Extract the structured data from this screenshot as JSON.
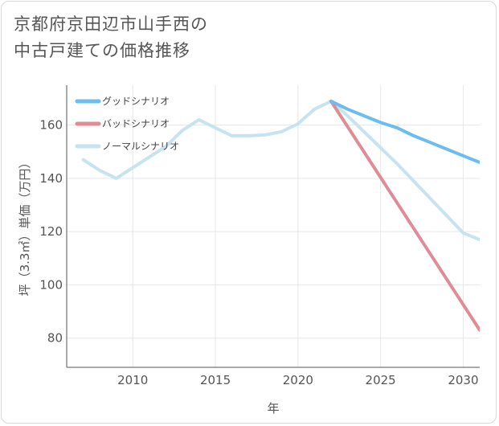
{
  "title": {
    "line1": "京都府京田辺市山手西の",
    "line2": "中古戸建ての価格推移"
  },
  "chart_data": {
    "type": "line",
    "xlabel": "年",
    "ylabel": "坪（3.3㎡）単価（万円）",
    "xlim": [
      2006,
      2031
    ],
    "ylim": [
      69,
      175
    ],
    "xticks": [
      2010,
      2015,
      2020,
      2025,
      2030
    ],
    "yticks": [
      80,
      100,
      120,
      140,
      160
    ],
    "legend_position": "top-left",
    "series": [
      {
        "name": "グッドシナリオ",
        "color": "#6bbcef",
        "x": [
          2022,
          2023,
          2024,
          2025,
          2026,
          2027,
          2028,
          2029,
          2030,
          2031
        ],
        "y": [
          169,
          166,
          163.5,
          161,
          159,
          156,
          153.5,
          151,
          148.5,
          146
        ]
      },
      {
        "name": "バッドシナリオ",
        "color": "#de8c96",
        "x": [
          2022,
          2031
        ],
        "y": [
          169,
          83
        ]
      },
      {
        "name": "ノーマルシナリオ",
        "color": "#c6e3ef",
        "x": [
          2007,
          2008,
          2009,
          2010,
          2011,
          2012,
          2013,
          2014,
          2015,
          2016,
          2017,
          2018,
          2019,
          2020,
          2021,
          2022,
          2023,
          2024,
          2025,
          2026,
          2027,
          2028,
          2029,
          2030,
          2031
        ],
        "y": [
          147,
          143,
          140,
          144,
          148,
          152,
          158,
          162,
          159,
          156,
          156,
          156.3,
          157.5,
          160.5,
          166,
          169,
          163.5,
          157.5,
          151.5,
          145.5,
          139,
          132.5,
          126,
          119.5,
          117
        ]
      }
    ]
  }
}
